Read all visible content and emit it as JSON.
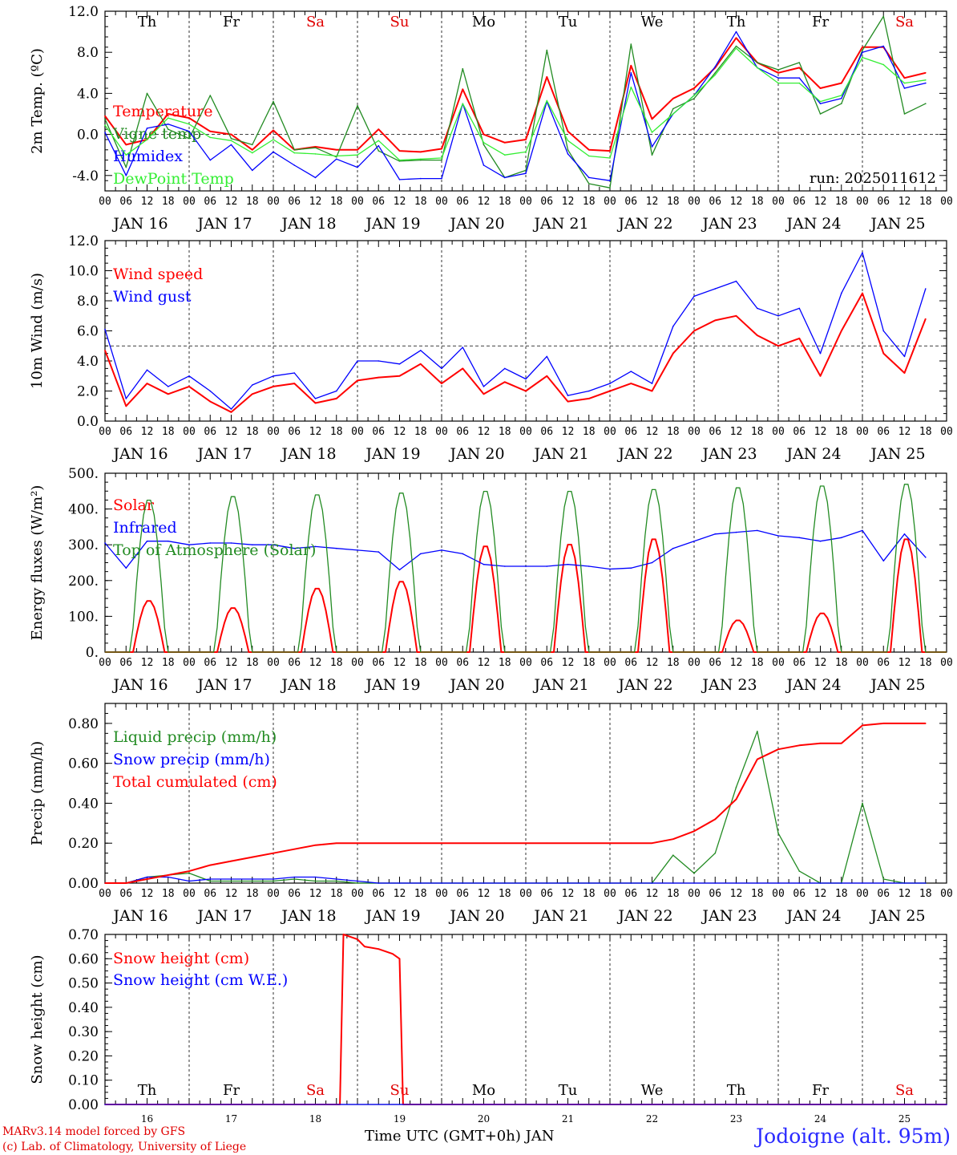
{
  "days": [
    "JAN 16",
    "JAN 17",
    "JAN 18",
    "JAN 19",
    "JAN 20",
    "JAN 21",
    "JAN 22",
    "JAN 23",
    "JAN 24",
    "JAN 25"
  ],
  "day_numbers": [
    "16",
    "17",
    "18",
    "19",
    "20",
    "21",
    "22",
    "23",
    "24",
    "25"
  ],
  "weekdays": [
    "Th",
    "Fr",
    "Sa",
    "Su",
    "Mo",
    "Tu",
    "We",
    "Th",
    "Fr",
    "Sa"
  ],
  "weekday_colors": [
    "#000000",
    "#000000",
    "#e00000",
    "#e00000",
    "#000000",
    "#000000",
    "#000000",
    "#000000",
    "#000000",
    "#e00000"
  ],
  "hour_labels": [
    "00",
    "06",
    "12",
    "18"
  ],
  "final_hour_label": "00",
  "run_label": "run: 2025011612",
  "footer": {
    "model": "MARv3.14 model forced by GFS",
    "lab": "(c) Lab. of Climatology, University of Liege",
    "time_axis": "Time UTC (GMT+0h) JAN",
    "station": "Jodoigne (alt. 95m)"
  },
  "colors": {
    "red": "#ff0000",
    "green": "#228b22",
    "blue": "#0000ff",
    "lightgreen": "#33ee33"
  },
  "chart_data": [
    {
      "type": "line",
      "ylabel": "2m Temp. (ºC)",
      "ylim": [
        -5.5,
        12.0
      ],
      "ytick_labels": [
        "-4.0",
        "0.0",
        "4.0",
        "8.0",
        "12.0"
      ],
      "yticks": [
        -4,
        0,
        4,
        8,
        12
      ],
      "ref_line": 0,
      "x_hours_from_jan16_00": [
        0,
        6,
        12,
        18,
        24,
        30,
        36,
        42,
        48,
        54,
        60,
        66,
        72,
        78,
        84,
        90,
        96,
        102,
        108,
        114,
        120,
        126,
        132,
        138,
        144,
        150,
        156,
        162,
        168,
        174,
        180,
        186,
        192,
        198,
        204,
        210,
        216,
        222,
        228,
        234
      ],
      "series": [
        {
          "name": "Temperature",
          "color": "red",
          "values": [
            1.8,
            -1.0,
            -0.5,
            2.0,
            1.6,
            0.3,
            0.0,
            -1.5,
            0.4,
            -1.5,
            -1.2,
            -1.5,
            -1.5,
            0.5,
            -1.6,
            -1.7,
            -1.4,
            4.4,
            0.0,
            -0.8,
            -0.5,
            5.6,
            0.3,
            -1.5,
            -1.6,
            6.7,
            1.5,
            3.5,
            4.5,
            6.5,
            9.4,
            7.0,
            6.0,
            6.5,
            4.5,
            5.0,
            8.5,
            8.5,
            5.5,
            6.0
          ]
        },
        {
          "name": "Vigne temp",
          "color": "green",
          "values": [
            1.5,
            -3.2,
            4.0,
            0.5,
            -0.4,
            3.8,
            -0.4,
            -1.0,
            3.2,
            -1.5,
            -1.3,
            -2.2,
            2.8,
            -1.6,
            -2.6,
            -2.5,
            -2.5,
            6.4,
            -1.0,
            -4.2,
            -3.5,
            8.2,
            -1.5,
            -4.8,
            -5.2,
            8.8,
            -2.0,
            2.5,
            3.5,
            6.0,
            8.6,
            7.0,
            6.3,
            7.0,
            2.0,
            3.0,
            8.2,
            11.5,
            2.0,
            3.0
          ]
        },
        {
          "name": "Humidex",
          "color": "blue",
          "values": [
            0.2,
            -4.0,
            0.6,
            1.0,
            0.3,
            -2.5,
            -1.0,
            -3.5,
            -1.7,
            -3.0,
            -4.2,
            -2.4,
            -3.2,
            -1.1,
            -4.4,
            -4.3,
            -4.3,
            3.0,
            -3.0,
            -4.2,
            -3.8,
            3.2,
            -1.9,
            -4.2,
            -4.5,
            6.0,
            -1.2,
            2.0,
            3.8,
            6.6,
            10.0,
            6.5,
            5.5,
            5.5,
            3.0,
            3.5,
            8.0,
            8.6,
            4.5,
            5.0
          ]
        },
        {
          "name": "DewPoint Temp",
          "color": "lightgreen",
          "values": [
            0.9,
            -2.0,
            -0.5,
            1.6,
            1.0,
            -0.3,
            -0.6,
            -1.8,
            -0.5,
            -1.8,
            -1.9,
            -2.1,
            -2.0,
            -0.6,
            -2.5,
            -2.4,
            -2.3,
            3.0,
            -0.8,
            -2.0,
            -1.7,
            3.3,
            -0.6,
            -2.1,
            -2.3,
            4.6,
            0.2,
            2.0,
            3.8,
            5.8,
            8.4,
            6.5,
            5.0,
            5.0,
            3.2,
            3.8,
            7.5,
            6.8,
            5.0,
            5.3
          ]
        }
      ]
    },
    {
      "type": "line",
      "ylabel": "10m Wind (m/s)",
      "ylim": [
        0,
        12.0
      ],
      "ytick_labels": [
        "0.0",
        "2.0",
        "4.0",
        "6.0",
        "8.0",
        "10.0",
        "12.0"
      ],
      "yticks": [
        0,
        2,
        4,
        6,
        8,
        10,
        12
      ],
      "ref_line": 5,
      "x_hours_from_jan16_00": [
        0,
        6,
        12,
        18,
        24,
        30,
        36,
        42,
        48,
        54,
        60,
        66,
        72,
        78,
        84,
        90,
        96,
        102,
        108,
        114,
        120,
        126,
        132,
        138,
        144,
        150,
        156,
        162,
        168,
        174,
        180,
        186,
        192,
        198,
        204,
        210,
        216,
        222,
        228,
        234
      ],
      "series": [
        {
          "name": "Wind speed",
          "color": "red",
          "values": [
            4.7,
            1.0,
            2.5,
            1.8,
            2.3,
            1.3,
            0.6,
            1.8,
            2.3,
            2.5,
            1.2,
            1.5,
            2.7,
            2.9,
            3.0,
            3.8,
            2.5,
            3.5,
            1.8,
            2.6,
            2.0,
            3.0,
            1.3,
            1.5,
            2.0,
            2.5,
            2.0,
            4.5,
            6.0,
            6.7,
            7.0,
            5.7,
            5.0,
            5.5,
            3.0,
            6.0,
            8.5,
            4.5,
            3.2,
            6.8
          ]
        },
        {
          "name": "Wind gust",
          "color": "blue",
          "values": [
            6.1,
            1.5,
            3.4,
            2.3,
            3.0,
            2.0,
            0.8,
            2.4,
            3.0,
            3.2,
            1.5,
            2.0,
            4.0,
            4.0,
            3.8,
            4.7,
            3.5,
            4.9,
            2.3,
            3.5,
            2.8,
            4.3,
            1.7,
            2.0,
            2.5,
            3.3,
            2.5,
            6.3,
            8.3,
            8.8,
            9.3,
            7.5,
            7.0,
            7.5,
            4.5,
            8.5,
            11.2,
            6.0,
            4.3,
            8.8
          ]
        }
      ]
    },
    {
      "type": "line",
      "ylabel": "Energy fluxes (W/m²)",
      "ylim": [
        0,
        500
      ],
      "ytick_labels": [
        "0.",
        "100.",
        "200.",
        "300.",
        "400.",
        "500."
      ],
      "yticks": [
        0,
        100,
        200,
        300,
        400,
        500
      ],
      "solar_peaks_toa": [
        430,
        440,
        445,
        450,
        455,
        455,
        460,
        465,
        470,
        475
      ],
      "solar_peaks_surface": [
        145,
        125,
        180,
        200,
        300,
        305,
        320,
        90,
        110,
        320
      ],
      "series": [
        {
          "name": "Solar",
          "color": "red"
        },
        {
          "name": "Infrared",
          "color": "blue",
          "x_hours_from_jan16_00": [
            0,
            6,
            12,
            18,
            24,
            30,
            36,
            42,
            48,
            54,
            60,
            66,
            72,
            78,
            84,
            90,
            96,
            102,
            108,
            114,
            120,
            126,
            132,
            138,
            144,
            150,
            156,
            162,
            168,
            174,
            180,
            186,
            192,
            198,
            204,
            210,
            216,
            222,
            228,
            234
          ],
          "values": [
            305,
            235,
            310,
            310,
            300,
            305,
            305,
            300,
            300,
            290,
            295,
            290,
            285,
            280,
            230,
            275,
            285,
            275,
            245,
            240,
            240,
            240,
            245,
            240,
            232,
            235,
            250,
            290,
            310,
            330,
            335,
            340,
            325,
            320,
            310,
            320,
            340,
            255,
            330,
            265
          ]
        },
        {
          "name": "Top of Atmosphere (Solar)",
          "color": "green"
        }
      ]
    },
    {
      "type": "line",
      "ylabel": "Precip (mm/h)",
      "ylim": [
        0,
        0.9
      ],
      "ytick_labels": [
        "0.00",
        "0.20",
        "0.40",
        "0.60",
        "0.80"
      ],
      "yticks": [
        0,
        0.2,
        0.4,
        0.6,
        0.8
      ],
      "series": [
        {
          "name": "Liquid precip (mm/h)",
          "color": "green",
          "x_hours_from_jan16_00": [
            0,
            6,
            12,
            18,
            24,
            30,
            36,
            42,
            48,
            54,
            60,
            66,
            72,
            78,
            84,
            90,
            96,
            102,
            108,
            114,
            120,
            126,
            132,
            138,
            144,
            150,
            156,
            162,
            168,
            174,
            180,
            186,
            192,
            198,
            204,
            210,
            216,
            222,
            228,
            234
          ],
          "values": [
            0,
            0,
            0.03,
            0.04,
            0.05,
            0.01,
            0.01,
            0.01,
            0.01,
            0.02,
            0.01,
            0.01,
            0,
            0,
            0,
            0,
            0,
            0,
            0,
            0,
            0,
            0,
            0,
            0,
            0,
            0,
            0,
            0.14,
            0.05,
            0.15,
            0.48,
            0.76,
            0.25,
            0.06,
            0,
            0,
            0.4,
            0.02,
            0,
            0
          ]
        },
        {
          "name": "Snow precip (mm/h)",
          "color": "blue",
          "x_hours_from_jan16_00": [
            0,
            6,
            12,
            18,
            24,
            30,
            36,
            42,
            48,
            54,
            60,
            66,
            72,
            78,
            84,
            90,
            96,
            102,
            108,
            114,
            120,
            126,
            132,
            138,
            144,
            150,
            156,
            162,
            168,
            174,
            180,
            186,
            192,
            198,
            204,
            210,
            216,
            222,
            228,
            234
          ],
          "values": [
            0,
            0,
            0.03,
            0.03,
            0.01,
            0.02,
            0.02,
            0.02,
            0.02,
            0.03,
            0.03,
            0.02,
            0.01,
            0,
            0,
            0,
            0,
            0,
            0,
            0,
            0,
            0,
            0,
            0,
            0,
            0,
            0,
            0,
            0,
            0,
            0,
            0,
            0,
            0,
            0,
            0,
            0,
            0,
            0,
            0
          ]
        },
        {
          "name": "Total cumulated (cm)",
          "color": "red",
          "x_hours_from_jan16_00": [
            0,
            6,
            12,
            18,
            24,
            30,
            36,
            42,
            48,
            54,
            60,
            66,
            72,
            78,
            84,
            90,
            96,
            102,
            108,
            114,
            120,
            126,
            132,
            138,
            144,
            150,
            156,
            162,
            168,
            174,
            180,
            186,
            192,
            198,
            204,
            210,
            216,
            222,
            228,
            234
          ],
          "values": [
            0,
            0,
            0.02,
            0.04,
            0.06,
            0.09,
            0.11,
            0.13,
            0.15,
            0.17,
            0.19,
            0.2,
            0.2,
            0.2,
            0.2,
            0.2,
            0.2,
            0.2,
            0.2,
            0.2,
            0.2,
            0.2,
            0.2,
            0.2,
            0.2,
            0.2,
            0.2,
            0.22,
            0.26,
            0.32,
            0.42,
            0.62,
            0.67,
            0.69,
            0.7,
            0.7,
            0.79,
            0.8,
            0.8,
            0.8
          ]
        }
      ]
    },
    {
      "type": "line",
      "ylabel": "Snow height (cm)",
      "ylim": [
        0,
        0.7
      ],
      "ytick_labels": [
        "0.00",
        "0.10",
        "0.20",
        "0.30",
        "0.40",
        "0.50",
        "0.60",
        "0.70"
      ],
      "yticks": [
        0,
        0.1,
        0.2,
        0.3,
        0.4,
        0.5,
        0.6,
        0.7
      ],
      "series": [
        {
          "name": "Snow height (cm)",
          "color": "red",
          "x_hours_from_jan16_00": [
            0,
            67,
            68,
            72,
            74,
            78,
            82,
            84,
            85,
            240
          ],
          "values": [
            0,
            0,
            0.7,
            0.68,
            0.65,
            0.64,
            0.62,
            0.6,
            0,
            0
          ]
        },
        {
          "name": "Snow height (cm W.E.)",
          "color": "blue",
          "x_hours_from_jan16_00": [
            0,
            240
          ],
          "values": [
            0,
            0
          ]
        }
      ]
    }
  ]
}
